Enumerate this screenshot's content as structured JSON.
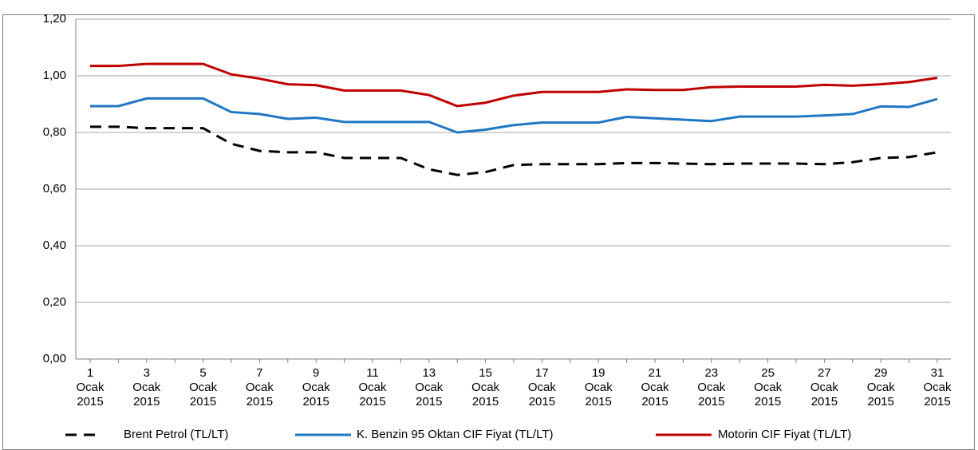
{
  "chart_data": {
    "type": "line",
    "categories": [
      "1 Ocak 2015",
      null,
      "3 Ocak 2015",
      null,
      "5 Ocak 2015",
      null,
      "7 Ocak 2015",
      null,
      "9 Ocak 2015",
      null,
      "11 Ocak 2015",
      null,
      "13 Ocak 2015",
      null,
      "15 Ocak 2015",
      null,
      "17 Ocak 2015",
      null,
      "19 Ocak 2015",
      null,
      "21 Ocak 2015",
      null,
      "23 Ocak 2015",
      null,
      "25 Ocak 2015",
      null,
      "27 Ocak 2015",
      null,
      "29 Ocak 2015",
      null,
      "31 Ocak 2015"
    ],
    "series": [
      {
        "name": "Brent Petrol (TL/LT)",
        "color": "#000000",
        "dash": "dashed",
        "values": [
          0.82,
          0.82,
          0.815,
          0.815,
          0.815,
          0.76,
          0.735,
          0.73,
          0.73,
          0.71,
          0.71,
          0.71,
          0.67,
          0.65,
          0.66,
          0.685,
          0.688,
          0.688,
          0.688,
          0.692,
          0.692,
          0.69,
          0.688,
          0.69,
          0.69,
          0.69,
          0.688,
          0.695,
          0.71,
          0.713,
          0.73
        ]
      },
      {
        "name": "K. Benzin 95 Oktan CIF Fiyat (TL/LT)",
        "color": "#1f77c4",
        "values": [
          0.893,
          0.893,
          0.92,
          0.92,
          0.92,
          0.872,
          0.865,
          0.848,
          0.852,
          0.837,
          0.837,
          0.837,
          0.837,
          0.8,
          0.81,
          0.826,
          0.835,
          0.835,
          0.835,
          0.855,
          0.85,
          0.845,
          0.84,
          0.856,
          0.856,
          0.856,
          0.86,
          0.865,
          0.892,
          0.89,
          0.918
        ]
      },
      {
        "name": "Motorin CIF Fiyat (TL/LT)",
        "color": "#c00000",
        "values": [
          1.035,
          1.035,
          1.042,
          1.042,
          1.042,
          1.005,
          0.99,
          0.97,
          0.967,
          0.948,
          0.948,
          0.948,
          0.932,
          0.893,
          0.905,
          0.93,
          0.943,
          0.943,
          0.943,
          0.952,
          0.95,
          0.95,
          0.96,
          0.962,
          0.962,
          0.962,
          0.968,
          0.965,
          0.97,
          0.978,
          0.993
        ]
      }
    ],
    "ylim": [
      0,
      1.2
    ],
    "yticks": [
      {
        "value": 0,
        "label": "0,00"
      },
      {
        "value": 0.2,
        "label": "0,20"
      },
      {
        "value": 0.4,
        "label": "0,40"
      },
      {
        "value": 0.6,
        "label": "0,60"
      },
      {
        "value": 0.8,
        "label": "0,80"
      },
      {
        "value": 1.0,
        "label": "1,00"
      },
      {
        "value": 1.2,
        "label": "1,20"
      }
    ],
    "grid": true,
    "legend": "bottom"
  }
}
